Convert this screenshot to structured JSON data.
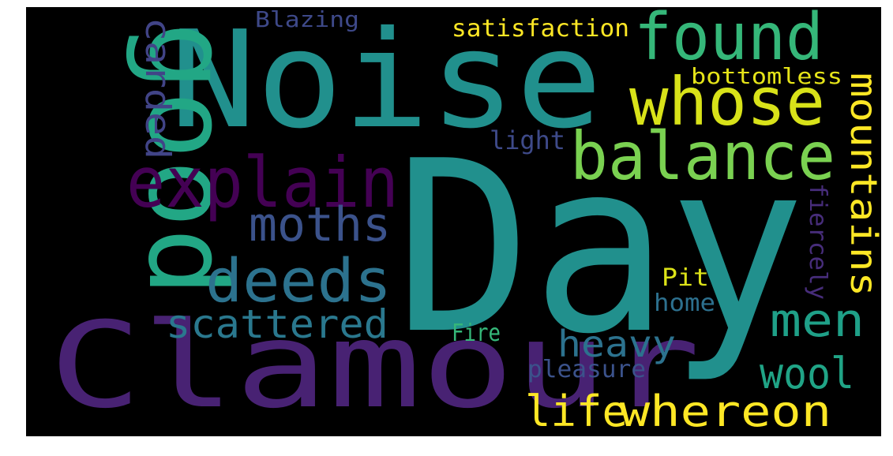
{
  "background_color": "#000000",
  "frame_color": "#ffffff",
  "words": [
    {
      "id": "noise",
      "text": "Noise",
      "color": "#21908d",
      "vertical": false
    },
    {
      "id": "day",
      "text": "Day",
      "color": "#21908d",
      "vertical": false
    },
    {
      "id": "clamour",
      "text": "Clamour",
      "color": "#482273",
      "vertical": false
    },
    {
      "id": "good",
      "text": "good",
      "color": "#22a785",
      "vertical": true
    },
    {
      "id": "found",
      "text": "found",
      "color": "#35b779",
      "vertical": false
    },
    {
      "id": "whose",
      "text": "whose",
      "color": "#d8e219",
      "vertical": false
    },
    {
      "id": "balance",
      "text": "balance",
      "color": "#7ad151",
      "vertical": false
    },
    {
      "id": "explain",
      "text": "explain",
      "color": "#440154",
      "vertical": false
    },
    {
      "id": "moths",
      "text": "moths",
      "color": "#3b528b",
      "vertical": false
    },
    {
      "id": "deeds",
      "text": "deeds",
      "color": "#2c728e",
      "vertical": false
    },
    {
      "id": "scattered",
      "text": "scattered",
      "color": "#2a788e",
      "vertical": false
    },
    {
      "id": "carded",
      "text": "carded",
      "color": "#414487",
      "vertical": true
    },
    {
      "id": "blazing",
      "text": "Blazing",
      "color": "#3e4989",
      "vertical": false
    },
    {
      "id": "satisfaction",
      "text": "satisfaction",
      "color": "#fde725",
      "vertical": false
    },
    {
      "id": "bottomless",
      "text": "bottomless",
      "color": "#e5e419",
      "vertical": false
    },
    {
      "id": "light",
      "text": "light",
      "color": "#3e4a89",
      "vertical": false
    },
    {
      "id": "mountains",
      "text": "mountains",
      "color": "#fde725",
      "vertical": true
    },
    {
      "id": "fiercely",
      "text": "fiercely",
      "color": "#472d7b",
      "vertical": true
    },
    {
      "id": "men",
      "text": "men",
      "color": "#1fa088",
      "vertical": false
    },
    {
      "id": "pit",
      "text": "Pit",
      "color": "#dde318",
      "vertical": false
    },
    {
      "id": "home",
      "text": "home",
      "color": "#2d708e",
      "vertical": false
    },
    {
      "id": "heavy",
      "text": "heavy",
      "color": "#2c728e",
      "vertical": false
    },
    {
      "id": "fire",
      "text": "Fire",
      "color": "#35b779",
      "vertical": false
    },
    {
      "id": "pleasure",
      "text": "pleasure",
      "color": "#3b528b",
      "vertical": false
    },
    {
      "id": "wool",
      "text": "wool",
      "color": "#20a486",
      "vertical": false
    },
    {
      "id": "life",
      "text": "life",
      "color": "#fde725",
      "vertical": false
    },
    {
      "id": "whereon",
      "text": "whereon",
      "color": "#fde725",
      "vertical": false
    }
  ]
}
